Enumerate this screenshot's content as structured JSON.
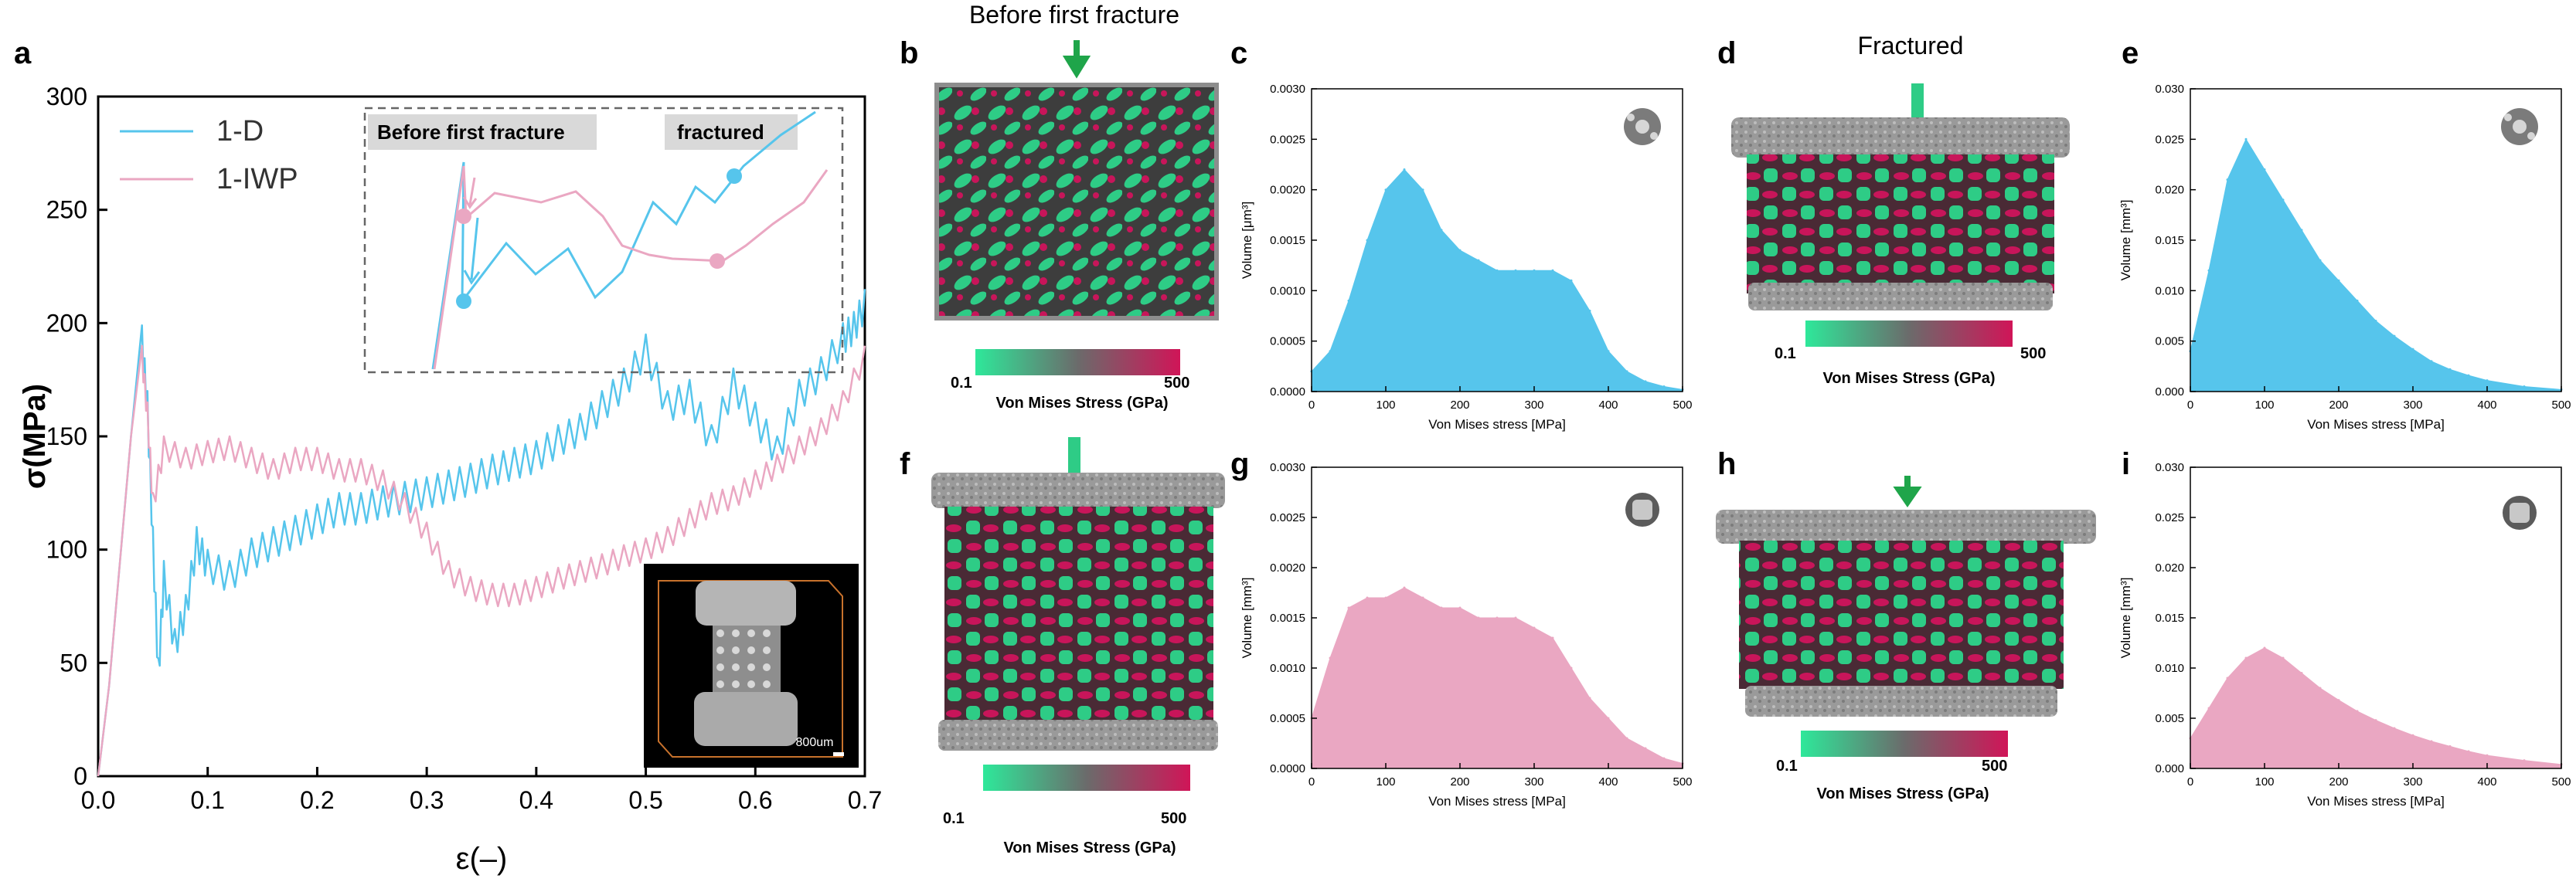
{
  "colors": {
    "blue": "#56c5ec",
    "pink": "#eaa7c2",
    "green": "#2ecc86",
    "magenta": "#c8155a",
    "arrow_green": "#1fa54a",
    "gray": "#a9a9a9"
  },
  "panel_letters": {
    "a": "a",
    "b": "b",
    "c": "c",
    "d": "d",
    "e": "e",
    "f": "f",
    "g": "g",
    "h": "h",
    "i": "i"
  },
  "headings": {
    "before": "Before first fracture",
    "fractured": "Fractured"
  },
  "colorbar": {
    "min": "0.1",
    "max": "500",
    "label": "Von Mises Stress (GPa)"
  },
  "inset_a": {
    "before_label": "Before first fracture",
    "fractured_label": "fractured"
  },
  "ct_image": {
    "scale_label": "800um"
  },
  "chart_data": [
    {
      "id": "a",
      "type": "line",
      "xlabel": "ε(–)",
      "ylabel": "σ(MPa)",
      "xlim": [
        0,
        0.7
      ],
      "ylim": [
        0,
        300
      ],
      "xticks": [
        "0.0",
        "0.1",
        "0.2",
        "0.3",
        "0.4",
        "0.5",
        "0.6",
        "0.7"
      ],
      "yticks": [
        "0",
        "50",
        "100",
        "150",
        "200",
        "250",
        "300"
      ],
      "legend_position": "top-left",
      "series": [
        {
          "name": "1-D",
          "color": "#56c5ec",
          "x": [
            0,
            0.01,
            0.02,
            0.03,
            0.04,
            0.045,
            0.05,
            0.055,
            0.06,
            0.07,
            0.08,
            0.09,
            0.1,
            0.12,
            0.14,
            0.16,
            0.18,
            0.2,
            0.22,
            0.24,
            0.26,
            0.28,
            0.3,
            0.32,
            0.34,
            0.36,
            0.38,
            0.4,
            0.42,
            0.44,
            0.46,
            0.48,
            0.5,
            0.52,
            0.54,
            0.56,
            0.58,
            0.6,
            0.62,
            0.64,
            0.66,
            0.68,
            0.69,
            0.7
          ],
          "y": [
            0,
            40,
            95,
            150,
            199,
            170,
            110,
            52,
            95,
            65,
            80,
            110,
            100,
            95,
            105,
            110,
            115,
            120,
            125,
            125,
            128,
            130,
            132,
            135,
            138,
            142,
            145,
            148,
            155,
            160,
            170,
            180,
            195,
            170,
            175,
            155,
            180,
            165,
            150,
            175,
            185,
            200,
            205,
            215
          ]
        },
        {
          "name": "1-IWP",
          "color": "#eaa7c2",
          "x": [
            0,
            0.01,
            0.02,
            0.03,
            0.04,
            0.045,
            0.05,
            0.06,
            0.08,
            0.1,
            0.12,
            0.14,
            0.16,
            0.18,
            0.2,
            0.22,
            0.24,
            0.26,
            0.28,
            0.3,
            0.32,
            0.34,
            0.36,
            0.38,
            0.4,
            0.42,
            0.44,
            0.46,
            0.48,
            0.5,
            0.52,
            0.54,
            0.56,
            0.58,
            0.6,
            0.62,
            0.64,
            0.66,
            0.68,
            0.7
          ],
          "y": [
            0,
            40,
            95,
            150,
            190,
            165,
            125,
            150,
            145,
            148,
            150,
            145,
            140,
            145,
            145,
            140,
            140,
            135,
            125,
            112,
            95,
            88,
            85,
            85,
            88,
            92,
            95,
            98,
            102,
            105,
            110,
            118,
            125,
            128,
            135,
            142,
            150,
            158,
            170,
            190
          ]
        }
      ]
    },
    {
      "id": "c",
      "type": "area",
      "xlabel": "Von Mises stress [MPa]",
      "ylabel": "Volume [μm³]",
      "xlim": [
        0,
        500
      ],
      "ylim": [
        0,
        0.003
      ],
      "xticks": [
        "0",
        "100",
        "200",
        "300",
        "400",
        "500"
      ],
      "yticks": [
        "0.0000",
        "0.0005",
        "0.0010",
        "0.0015",
        "0.0020",
        "0.0025",
        "0.0030"
      ],
      "color": "#56c5ec",
      "x": [
        0,
        25,
        50,
        75,
        100,
        125,
        150,
        175,
        200,
        225,
        250,
        275,
        300,
        325,
        350,
        375,
        400,
        425,
        450,
        475,
        500
      ],
      "y": [
        0.0002,
        0.0004,
        0.0009,
        0.0015,
        0.002,
        0.0022,
        0.002,
        0.0016,
        0.0014,
        0.0013,
        0.0012,
        0.0012,
        0.0012,
        0.0012,
        0.0011,
        0.0008,
        0.0004,
        0.0002,
        0.0001,
        5e-05,
        2e-05
      ]
    },
    {
      "id": "e",
      "type": "area",
      "xlabel": "Von Mises stress [MPa]",
      "ylabel": "Volume [mm³]",
      "xlim": [
        0,
        500
      ],
      "ylim": [
        0,
        0.03
      ],
      "xticks": [
        "0",
        "100",
        "200",
        "300",
        "400",
        "500"
      ],
      "yticks": [
        "0.000",
        "0.005",
        "0.010",
        "0.015",
        "0.020",
        "0.025",
        "0.030"
      ],
      "color": "#56c5ec",
      "x": [
        0,
        25,
        50,
        75,
        100,
        125,
        150,
        175,
        200,
        225,
        250,
        275,
        300,
        325,
        350,
        375,
        400,
        450,
        500
      ],
      "y": [
        0.004,
        0.012,
        0.021,
        0.025,
        0.022,
        0.019,
        0.016,
        0.013,
        0.011,
        0.009,
        0.007,
        0.0055,
        0.0042,
        0.003,
        0.0022,
        0.0016,
        0.0011,
        0.0005,
        0.0002
      ]
    },
    {
      "id": "g",
      "type": "area",
      "xlabel": "Von Mises stress [MPa]",
      "ylabel": "Volume [mm³]",
      "xlim": [
        0,
        500
      ],
      "ylim": [
        0,
        0.003
      ],
      "xticks": [
        "0",
        "100",
        "200",
        "300",
        "400",
        "500"
      ],
      "yticks": [
        "0.0000",
        "0.0005",
        "0.0010",
        "0.0015",
        "0.0020",
        "0.0025",
        "0.0030"
      ],
      "color": "#eaa7c2",
      "x": [
        0,
        25,
        50,
        75,
        100,
        125,
        150,
        175,
        200,
        225,
        250,
        275,
        300,
        325,
        350,
        375,
        400,
        425,
        450,
        475,
        500
      ],
      "y": [
        0.0005,
        0.0011,
        0.0016,
        0.0017,
        0.0017,
        0.0018,
        0.0017,
        0.0016,
        0.0016,
        0.0015,
        0.0015,
        0.0015,
        0.0014,
        0.0013,
        0.001,
        0.0007,
        0.0005,
        0.0003,
        0.0002,
        0.0001,
        5e-05
      ]
    },
    {
      "id": "i",
      "type": "area",
      "xlabel": "Von Mises stress [MPa]",
      "ylabel": "Volume [mm³]",
      "xlim": [
        0,
        500
      ],
      "ylim": [
        0,
        0.03
      ],
      "xticks": [
        "0",
        "100",
        "200",
        "300",
        "400",
        "500"
      ],
      "yticks": [
        "0.000",
        "0.005",
        "0.010",
        "0.015",
        "0.020",
        "0.025",
        "0.030"
      ],
      "color": "#eaa7c2",
      "x": [
        0,
        25,
        50,
        75,
        100,
        125,
        150,
        175,
        200,
        225,
        250,
        275,
        300,
        325,
        350,
        375,
        400,
        450,
        500
      ],
      "y": [
        0.003,
        0.006,
        0.009,
        0.011,
        0.012,
        0.011,
        0.0095,
        0.008,
        0.0068,
        0.0057,
        0.0048,
        0.004,
        0.0033,
        0.0027,
        0.0022,
        0.0017,
        0.0013,
        0.0008,
        0.0004
      ]
    }
  ]
}
